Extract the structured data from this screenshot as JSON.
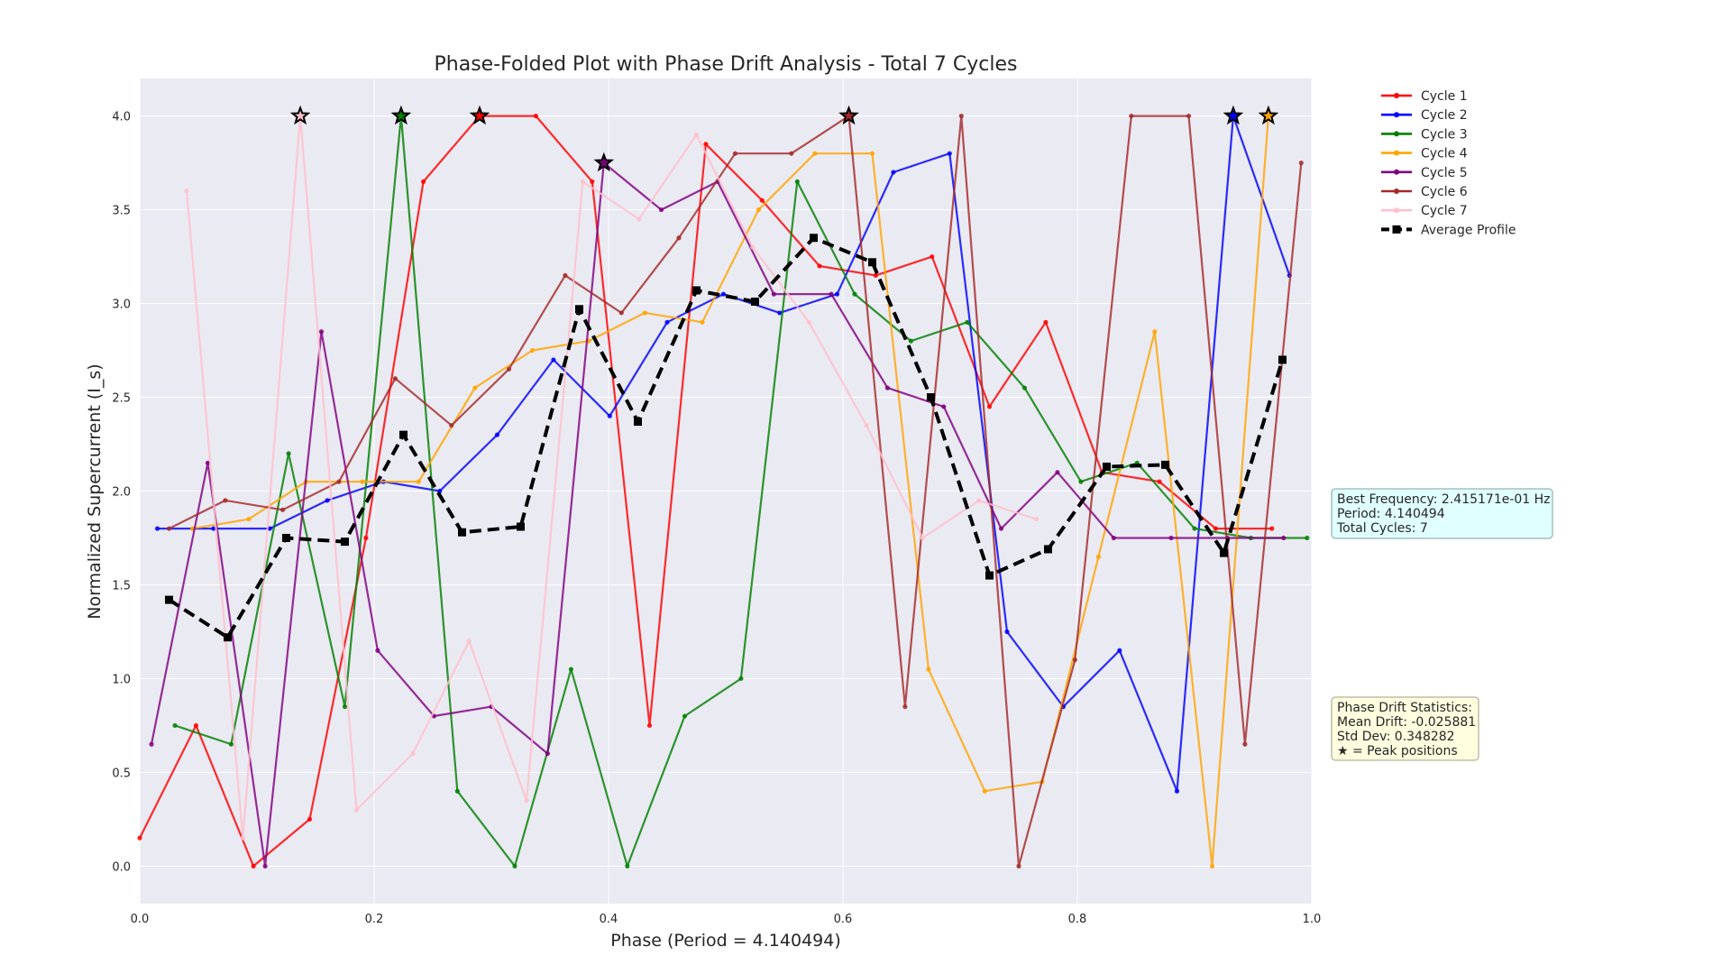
{
  "chart_data": {
    "type": "line",
    "title": "Phase-Folded Plot with Phase Drift Analysis - Total 7 Cycles",
    "xlabel": "Phase (Period = 4.140494)",
    "ylabel": "Normalized Supercurrent (I_s)",
    "xlim": [
      0.0,
      1.0
    ],
    "ylim": [
      -0.2,
      4.2
    ],
    "xticks": [
      0.0,
      0.2,
      0.4,
      0.6,
      0.8,
      1.0
    ],
    "xtick_labels": [
      "0.0",
      "0.2",
      "0.4",
      "0.6",
      "0.8",
      "1.0"
    ],
    "yticks": [
      0.0,
      0.5,
      1.0,
      1.5,
      2.0,
      2.5,
      3.0,
      3.5,
      4.0
    ],
    "ytick_labels": [
      "0.0",
      "0.5",
      "1.0",
      "1.5",
      "2.0",
      "2.5",
      "3.0",
      "3.5",
      "4.0"
    ],
    "grid": true,
    "legend_position": "top-right outside",
    "series": [
      {
        "name": "Cycle 1",
        "color": "#ff0000",
        "x": [
          0.0,
          0.048,
          0.097,
          0.145,
          0.193,
          0.242,
          0.29,
          0.338,
          0.386,
          0.435,
          0.483,
          0.531,
          0.58,
          0.628,
          0.676,
          0.725,
          0.773,
          0.821,
          0.87,
          0.918,
          0.966
        ],
        "y": [
          0.15,
          0.75,
          0.0,
          0.25,
          1.75,
          3.65,
          4.0,
          4.0,
          3.65,
          0.75,
          3.85,
          3.55,
          3.2,
          3.15,
          3.25,
          2.45,
          2.9,
          2.1,
          2.05,
          1.8,
          1.8
        ]
      },
      {
        "name": "Cycle 2",
        "color": "#0000ff",
        "x": [
          0.015,
          0.063,
          0.111,
          0.16,
          0.208,
          0.256,
          0.305,
          0.353,
          0.401,
          0.45,
          0.498,
          0.546,
          0.595,
          0.643,
          0.691,
          0.74,
          0.788,
          0.836,
          0.885,
          0.933,
          0.981
        ],
        "y": [
          1.8,
          1.8,
          1.8,
          1.95,
          2.05,
          2.0,
          2.3,
          2.7,
          2.4,
          2.9,
          3.05,
          2.95,
          3.05,
          3.7,
          3.8,
          1.25,
          0.85,
          1.15,
          0.4,
          4.0,
          3.15
        ]
      },
      {
        "name": "Cycle 3",
        "color": "#008000",
        "x": [
          0.03,
          0.078,
          0.127,
          0.175,
          0.223,
          0.271,
          0.32,
          0.368,
          0.416,
          0.465,
          0.513,
          0.561,
          0.61,
          0.658,
          0.706,
          0.755,
          0.803,
          0.851,
          0.9,
          0.948,
          0.996
        ],
        "y": [
          0.75,
          0.65,
          2.2,
          0.85,
          4.0,
          0.4,
          0.0,
          1.05,
          0.0,
          0.8,
          1.0,
          3.65,
          3.05,
          2.8,
          2.9,
          2.55,
          2.05,
          2.15,
          1.8,
          1.75,
          1.75
        ]
      },
      {
        "name": "Cycle 4",
        "color": "#ffa500",
        "x": [
          0.045,
          0.093,
          0.142,
          0.19,
          0.238,
          0.286,
          0.335,
          0.383,
          0.431,
          0.48,
          0.528,
          0.576,
          0.625,
          0.673,
          0.721,
          0.77,
          0.818,
          0.866,
          0.915,
          0.963
        ],
        "y": [
          1.8,
          1.85,
          2.05,
          2.05,
          2.05,
          2.55,
          2.75,
          2.8,
          2.95,
          2.9,
          3.5,
          3.8,
          3.8,
          1.05,
          0.4,
          0.45,
          1.65,
          2.85,
          0.0,
          4.0
        ]
      },
      {
        "name": "Cycle 5",
        "color": "#800080",
        "x": [
          0.01,
          0.058,
          0.107,
          0.155,
          0.203,
          0.251,
          0.3,
          0.348,
          0.396,
          0.445,
          0.493,
          0.541,
          0.59,
          0.638,
          0.686,
          0.735,
          0.783,
          0.831,
          0.88,
          0.928,
          0.976
        ],
        "y": [
          0.65,
          2.15,
          0.0,
          2.85,
          1.15,
          0.8,
          0.85,
          0.6,
          3.75,
          3.5,
          3.65,
          3.05,
          3.05,
          2.55,
          2.45,
          1.8,
          2.1,
          1.75,
          1.75,
          1.75,
          1.75
        ]
      },
      {
        "name": "Cycle 6",
        "color": "#a52a2a",
        "x": [
          0.025,
          0.073,
          0.122,
          0.17,
          0.218,
          0.266,
          0.315,
          0.363,
          0.411,
          0.46,
          0.508,
          0.556,
          0.605,
          0.653,
          0.701,
          0.75,
          0.798,
          0.846,
          0.895,
          0.943,
          0.991
        ],
        "y": [
          1.8,
          1.95,
          1.9,
          2.05,
          2.6,
          2.35,
          2.65,
          3.15,
          2.95,
          3.35,
          3.8,
          3.8,
          4.0,
          0.85,
          4.0,
          0.0,
          1.1,
          4.0,
          4.0,
          0.65,
          3.75
        ]
      },
      {
        "name": "Cycle 7",
        "color": "#ffc0cb",
        "x": [
          0.04,
          0.088,
          0.137,
          0.185,
          0.233,
          0.281,
          0.33,
          0.378,
          0.426,
          0.475,
          0.523,
          0.571,
          0.62,
          0.668,
          0.716,
          0.765
        ],
        "y": [
          3.6,
          0.15,
          4.0,
          0.3,
          0.6,
          1.2,
          0.35,
          3.65,
          3.45,
          3.9,
          3.3,
          2.9,
          2.35,
          1.75,
          1.95,
          1.85
        ]
      }
    ],
    "average_profile": {
      "name": "Average Profile",
      "color": "#000000",
      "x": [
        0.025,
        0.075,
        0.125,
        0.175,
        0.225,
        0.275,
        0.325,
        0.375,
        0.425,
        0.475,
        0.525,
        0.575,
        0.625,
        0.675,
        0.725,
        0.775,
        0.825,
        0.875,
        0.925,
        0.975
      ],
      "y": [
        1.42,
        1.22,
        1.75,
        1.73,
        2.3,
        1.78,
        1.81,
        2.97,
        2.37,
        3.07,
        3.01,
        3.35,
        3.22,
        2.5,
        1.55,
        1.69,
        2.13,
        2.14,
        1.67,
        2.7
      ]
    },
    "peaks": [
      {
        "x": 0.137,
        "y": 4.0,
        "color": "#ffc0cb"
      },
      {
        "x": 0.223,
        "y": 4.0,
        "color": "#008000"
      },
      {
        "x": 0.29,
        "y": 4.0,
        "color": "#ff0000"
      },
      {
        "x": 0.396,
        "y": 3.75,
        "color": "#800080"
      },
      {
        "x": 0.605,
        "y": 4.0,
        "color": "#a52a2a"
      },
      {
        "x": 0.933,
        "y": 4.0,
        "color": "#0000ff"
      },
      {
        "x": 0.963,
        "y": 4.0,
        "color": "#ffa500"
      }
    ],
    "annotations": {
      "frequency_box": {
        "lines": [
          "Best Frequency: 2.415171e-01 Hz",
          "Period: 4.140494",
          "Total Cycles: 7"
        ],
        "background": "#e0ffff"
      },
      "drift_box": {
        "lines": [
          "Phase Drift Statistics:",
          "Mean Drift: -0.025881",
          "Std Dev: 0.348282",
          "★ = Peak positions"
        ],
        "background": "#ffffe0"
      }
    }
  }
}
